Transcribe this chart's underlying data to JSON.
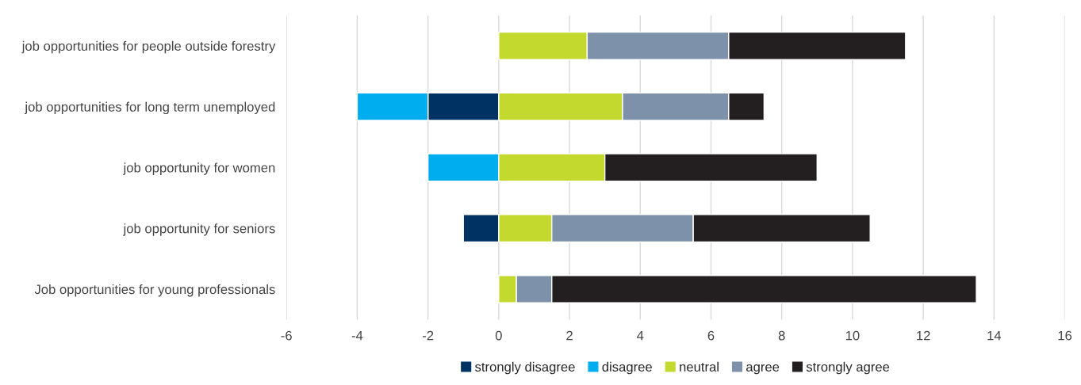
{
  "chart_data": {
    "type": "bar",
    "orientation": "horizontal",
    "stacked": true,
    "categories": [
      "job opportunities for people outside forestry",
      "job opportunities for long term unemployed",
      "job opportunity for women",
      "job opportunity for seniors",
      "Job opportunities for young professionals"
    ],
    "series": [
      {
        "name": "strongly disagree",
        "color": "#003263",
        "values": [
          null,
          -2,
          null,
          -1,
          null
        ]
      },
      {
        "name": "disagree",
        "color": "#00aeef",
        "values": [
          null,
          -2,
          -2,
          null,
          null
        ]
      },
      {
        "name": "neutral",
        "color": "#c4d92e",
        "values": [
          2.5,
          3.5,
          3,
          1.5,
          0.5
        ]
      },
      {
        "name": "agree",
        "color": "#7e91aa",
        "values": [
          4,
          3,
          null,
          4,
          1
        ]
      },
      {
        "name": "strongly agree",
        "color": "#231f20",
        "values": [
          5,
          1,
          6,
          5,
          12
        ]
      }
    ],
    "xlim": [
      -6,
      16
    ],
    "xticks": [
      -6,
      -4,
      -2,
      0,
      2,
      4,
      6,
      8,
      10,
      12,
      14,
      16
    ],
    "grid": "x",
    "legend": "bottom"
  }
}
